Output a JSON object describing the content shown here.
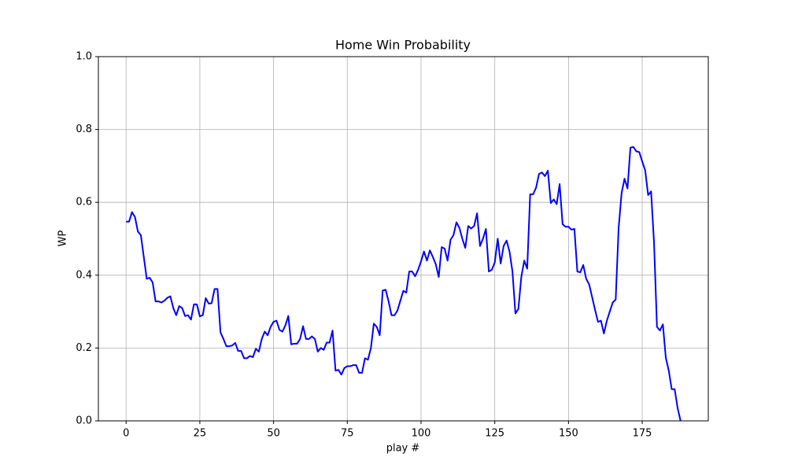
{
  "chart_data": {
    "type": "line",
    "title": "Home Win Probability",
    "xlabel": "play #",
    "ylabel": "WP",
    "color": "#0000ff",
    "grid": true,
    "xlim": [
      -9.4,
      197.4
    ],
    "ylim": [
      0,
      1
    ],
    "xticks": [
      0,
      25,
      50,
      75,
      100,
      125,
      150,
      175
    ],
    "yticks": [
      {
        "value": 0,
        "label": "0.0"
      },
      {
        "value": 0.2,
        "label": "0.2"
      },
      {
        "value": 0.4,
        "label": "0.4"
      },
      {
        "value": 0.6,
        "label": "0.6"
      },
      {
        "value": 0.8,
        "label": "0.8"
      },
      {
        "value": 1,
        "label": "1.0"
      }
    ],
    "x": [
      0,
      1,
      2,
      3,
      4,
      5,
      6,
      7,
      8,
      9,
      10,
      11,
      12,
      13,
      14,
      15,
      16,
      17,
      18,
      19,
      20,
      21,
      22,
      23,
      24,
      25,
      26,
      27,
      28,
      29,
      30,
      31,
      32,
      33,
      34,
      35,
      36,
      37,
      38,
      39,
      40,
      41,
      42,
      43,
      44,
      45,
      46,
      47,
      48,
      49,
      50,
      51,
      52,
      53,
      54,
      55,
      56,
      57,
      58,
      59,
      60,
      61,
      62,
      63,
      64,
      65,
      66,
      67,
      68,
      69,
      70,
      71,
      72,
      73,
      74,
      75,
      76,
      77,
      78,
      79,
      80,
      81,
      82,
      83,
      84,
      85,
      86,
      87,
      88,
      89,
      90,
      91,
      92,
      93,
      94,
      95,
      96,
      97,
      98,
      99,
      100,
      101,
      102,
      103,
      104,
      105,
      106,
      107,
      108,
      109,
      110,
      111,
      112,
      113,
      114,
      115,
      116,
      117,
      118,
      119,
      120,
      121,
      122,
      123,
      124,
      125,
      126,
      127,
      128,
      129,
      130,
      131,
      132,
      133,
      134,
      135,
      136,
      137,
      138,
      139,
      140,
      141,
      142,
      143,
      144,
      145,
      146,
      147,
      148,
      149,
      150,
      151,
      152,
      153,
      154,
      155,
      156,
      157,
      158,
      159,
      160,
      161,
      162,
      163,
      164,
      165,
      166,
      167,
      168,
      169,
      170,
      171,
      172,
      173,
      174,
      175,
      176,
      177,
      178,
      179,
      180,
      181,
      182,
      183,
      184,
      185,
      186,
      187,
      188
    ],
    "values": [
      0.547,
      0.547,
      0.573,
      0.56,
      0.52,
      0.51,
      0.45,
      0.39,
      0.393,
      0.38,
      0.328,
      0.328,
      0.325,
      0.33,
      0.338,
      0.342,
      0.31,
      0.29,
      0.315,
      0.31,
      0.288,
      0.29,
      0.278,
      0.32,
      0.32,
      0.287,
      0.29,
      0.337,
      0.322,
      0.323,
      0.362,
      0.362,
      0.243,
      0.225,
      0.205,
      0.205,
      0.207,
      0.214,
      0.192,
      0.192,
      0.172,
      0.172,
      0.178,
      0.175,
      0.198,
      0.19,
      0.225,
      0.245,
      0.235,
      0.258,
      0.272,
      0.275,
      0.25,
      0.245,
      0.262,
      0.288,
      0.21,
      0.212,
      0.212,
      0.225,
      0.26,
      0.225,
      0.225,
      0.232,
      0.225,
      0.19,
      0.2,
      0.195,
      0.215,
      0.215,
      0.248,
      0.138,
      0.14,
      0.127,
      0.145,
      0.15,
      0.15,
      0.153,
      0.153,
      0.132,
      0.132,
      0.172,
      0.168,
      0.2,
      0.267,
      0.258,
      0.235,
      0.358,
      0.36,
      0.328,
      0.29,
      0.29,
      0.303,
      0.33,
      0.357,
      0.352,
      0.41,
      0.41,
      0.397,
      0.415,
      0.438,
      0.465,
      0.44,
      0.468,
      0.45,
      0.43,
      0.395,
      0.477,
      0.473,
      0.44,
      0.497,
      0.51,
      0.545,
      0.53,
      0.5,
      0.475,
      0.535,
      0.528,
      0.535,
      0.57,
      0.48,
      0.5,
      0.527,
      0.41,
      0.415,
      0.435,
      0.5,
      0.432,
      0.48,
      0.495,
      0.465,
      0.41,
      0.295,
      0.307,
      0.395,
      0.44,
      0.418,
      0.622,
      0.622,
      0.64,
      0.678,
      0.682,
      0.672,
      0.687,
      0.598,
      0.608,
      0.595,
      0.65,
      0.54,
      0.533,
      0.533,
      0.525,
      0.527,
      0.41,
      0.408,
      0.428,
      0.39,
      0.375,
      0.34,
      0.305,
      0.272,
      0.275,
      0.24,
      0.275,
      0.3,
      0.325,
      0.333,
      0.53,
      0.625,
      0.665,
      0.638,
      0.75,
      0.752,
      0.74,
      0.738,
      0.712,
      0.688,
      0.62,
      0.63,
      0.49,
      0.258,
      0.248,
      0.265,
      0.173,
      0.138,
      0.087,
      0.087,
      0.035,
      0
    ]
  }
}
